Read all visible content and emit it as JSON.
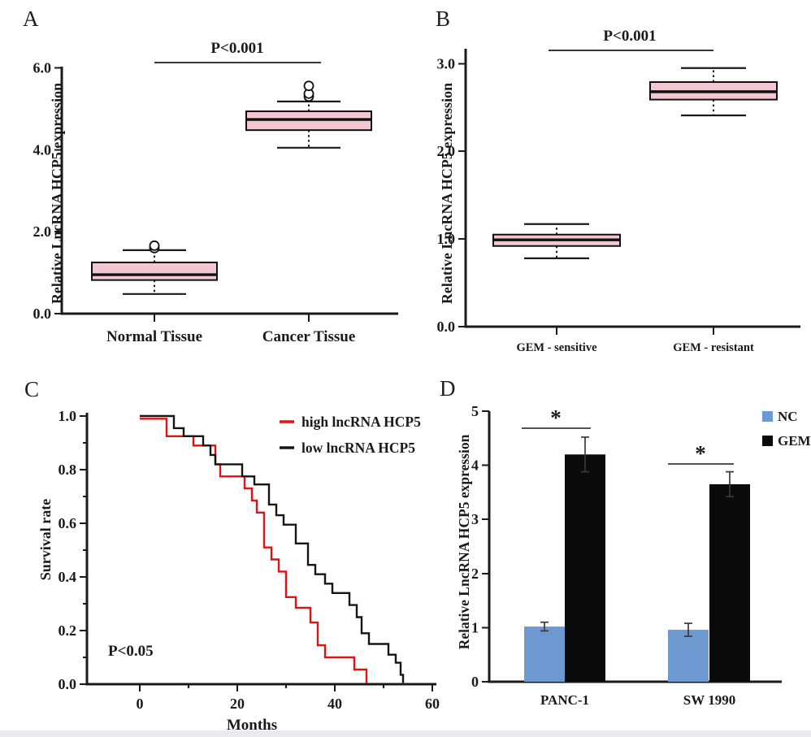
{
  "figure": {
    "background": "#ffffff",
    "footer_strip_color": "#e9e9ee",
    "text_color": "#1a1a1a"
  },
  "panel_labels": {
    "a": "A",
    "b": "B",
    "c": "C",
    "d": "D"
  },
  "chart_data": [
    {
      "id": "A",
      "type": "box",
      "title": "",
      "ylabel": "Relative LncRNA HCP5 expression",
      "ylim": [
        0,
        6.03
      ],
      "yticks": [
        0,
        2,
        4,
        6
      ],
      "ytick_labels": [
        "0.0",
        "2.0",
        "4.0",
        "6.0"
      ],
      "categories": [
        "Normal Tissue",
        "Cancer Tissue"
      ],
      "box_fill": "#f2c6d2",
      "boxes": [
        {
          "category": "Normal Tissue",
          "whisker_low": 0.48,
          "q1": 0.82,
          "median": 0.95,
          "q3": 1.25,
          "whisker_high": 1.55,
          "outliers": [
            1.6,
            1.66
          ]
        },
        {
          "category": "Cancer Tissue",
          "whisker_low": 4.05,
          "q1": 4.48,
          "median": 4.74,
          "q3": 4.94,
          "whisker_high": 5.18,
          "outliers": [
            5.3,
            5.37,
            5.56
          ]
        }
      ],
      "significance": {
        "label": "P<0.001"
      }
    },
    {
      "id": "B",
      "type": "box",
      "title": "",
      "ylabel": "Relative LncRNA HCP5 expression",
      "ylim": [
        0,
        3.17
      ],
      "yticks": [
        0,
        1,
        2,
        3
      ],
      "ytick_labels": [
        "0.0",
        "1.0",
        "2.0",
        "3.0"
      ],
      "categories": [
        "GEM - sensitive",
        "GEM - resistant"
      ],
      "box_fill": "#f2c6d2",
      "boxes": [
        {
          "category": "GEM - sensitive",
          "whisker_low": 0.78,
          "q1": 0.92,
          "median": 0.99,
          "q3": 1.05,
          "whisker_high": 1.17,
          "outliers": []
        },
        {
          "category": "GEM - resistant",
          "whisker_low": 2.41,
          "q1": 2.59,
          "median": 2.68,
          "q3": 2.79,
          "whisker_high": 2.95,
          "outliers": []
        }
      ],
      "significance": {
        "label": "P<0.001"
      }
    },
    {
      "id": "C",
      "type": "line-step",
      "title": "",
      "xlabel": "Months",
      "ylabel": "Survival rate",
      "xlim": [
        0,
        60
      ],
      "ylim": [
        0,
        1.0
      ],
      "xticks": [
        0,
        20,
        40,
        60
      ],
      "xtick_labels": [
        "0",
        "20",
        "40",
        "60"
      ],
      "xminor": [
        10,
        30,
        50
      ],
      "yticks": [
        0,
        0.2,
        0.4,
        0.6,
        0.8,
        1.0
      ],
      "ytick_labels": [
        "0.0",
        "0.2",
        "0.4",
        "0.6",
        "0.8",
        "1.0"
      ],
      "yminor": [
        0.1,
        0.3,
        0.5,
        0.7,
        0.9
      ],
      "annotation": "P<0.05",
      "legend_position": "top-right",
      "series": [
        {
          "name": "high lncRNA HCP5",
          "color": "#e01212",
          "points": [
            [
              0,
              0.99
            ],
            [
              5.5,
              0.99
            ],
            [
              5.5,
              0.925
            ],
            [
              11,
              0.925
            ],
            [
              11,
              0.89
            ],
            [
              15.5,
              0.89
            ],
            [
              15.5,
              0.82
            ],
            [
              16.5,
              0.82
            ],
            [
              16.5,
              0.775
            ],
            [
              21.5,
              0.775
            ],
            [
              21.5,
              0.73
            ],
            [
              23,
              0.73
            ],
            [
              23,
              0.685
            ],
            [
              24,
              0.685
            ],
            [
              24,
              0.64
            ],
            [
              25.5,
              0.64
            ],
            [
              25.5,
              0.51
            ],
            [
              27,
              0.51
            ],
            [
              27,
              0.465
            ],
            [
              28.5,
              0.465
            ],
            [
              28.5,
              0.42
            ],
            [
              30,
              0.42
            ],
            [
              30,
              0.325
            ],
            [
              32,
              0.325
            ],
            [
              32,
              0.285
            ],
            [
              35,
              0.285
            ],
            [
              35,
              0.23
            ],
            [
              36.5,
              0.23
            ],
            [
              36.5,
              0.145
            ],
            [
              38,
              0.145
            ],
            [
              38,
              0.1
            ],
            [
              44,
              0.1
            ],
            [
              44,
              0.055
            ],
            [
              46.5,
              0.055
            ],
            [
              46.5,
              0.005
            ]
          ]
        },
        {
          "name": "low lncRNA HCP5",
          "color": "#141414",
          "points": [
            [
              0,
              1.0
            ],
            [
              7,
              1.0
            ],
            [
              7,
              0.955
            ],
            [
              9,
              0.955
            ],
            [
              9,
              0.925
            ],
            [
              13,
              0.925
            ],
            [
              13,
              0.89
            ],
            [
              14.5,
              0.89
            ],
            [
              14.5,
              0.855
            ],
            [
              15.5,
              0.855
            ],
            [
              15.5,
              0.82
            ],
            [
              21,
              0.82
            ],
            [
              21,
              0.775
            ],
            [
              23.5,
              0.775
            ],
            [
              23.5,
              0.745
            ],
            [
              26.5,
              0.745
            ],
            [
              26.5,
              0.67
            ],
            [
              28,
              0.67
            ],
            [
              28,
              0.63
            ],
            [
              29.5,
              0.63
            ],
            [
              29.5,
              0.595
            ],
            [
              32,
              0.595
            ],
            [
              32,
              0.525
            ],
            [
              34.5,
              0.525
            ],
            [
              34.5,
              0.445
            ],
            [
              36,
              0.445
            ],
            [
              36,
              0.41
            ],
            [
              38,
              0.41
            ],
            [
              38,
              0.375
            ],
            [
              39.5,
              0.375
            ],
            [
              39.5,
              0.34
            ],
            [
              43,
              0.34
            ],
            [
              43,
              0.295
            ],
            [
              44.5,
              0.295
            ],
            [
              44.5,
              0.25
            ],
            [
              45.5,
              0.25
            ],
            [
              45.5,
              0.19
            ],
            [
              47,
              0.19
            ],
            [
              47,
              0.15
            ],
            [
              51,
              0.15
            ],
            [
              51,
              0.11
            ],
            [
              52.5,
              0.11
            ],
            [
              52.5,
              0.08
            ],
            [
              53.5,
              0.08
            ],
            [
              53.5,
              0.035
            ],
            [
              54,
              0.035
            ],
            [
              54,
              0.005
            ]
          ]
        }
      ]
    },
    {
      "id": "D",
      "type": "bar",
      "title": "",
      "ylabel": "Relative LncRNA HCP5 expression",
      "ylim": [
        0,
        5
      ],
      "yticks": [
        0,
        1,
        2,
        3,
        4,
        5
      ],
      "ytick_labels": [
        "0",
        "1",
        "2",
        "3",
        "4",
        "5"
      ],
      "categories": [
        "PANC-1",
        "SW 1990"
      ],
      "legend_position": "top-right",
      "series": [
        {
          "name": "NC",
          "color": "#6e99d0",
          "values": [
            1.02,
            0.96
          ],
          "errors": [
            0.08,
            0.12
          ]
        },
        {
          "name": "GEM",
          "color": "#0a0a0a",
          "values": [
            4.2,
            3.65
          ],
          "errors": [
            0.32,
            0.23
          ]
        }
      ],
      "significance": [
        {
          "label": "*",
          "category": "PANC-1"
        },
        {
          "label": "*",
          "category": "SW 1990"
        }
      ],
      "error_bar_color": "#3a3a3a"
    }
  ]
}
